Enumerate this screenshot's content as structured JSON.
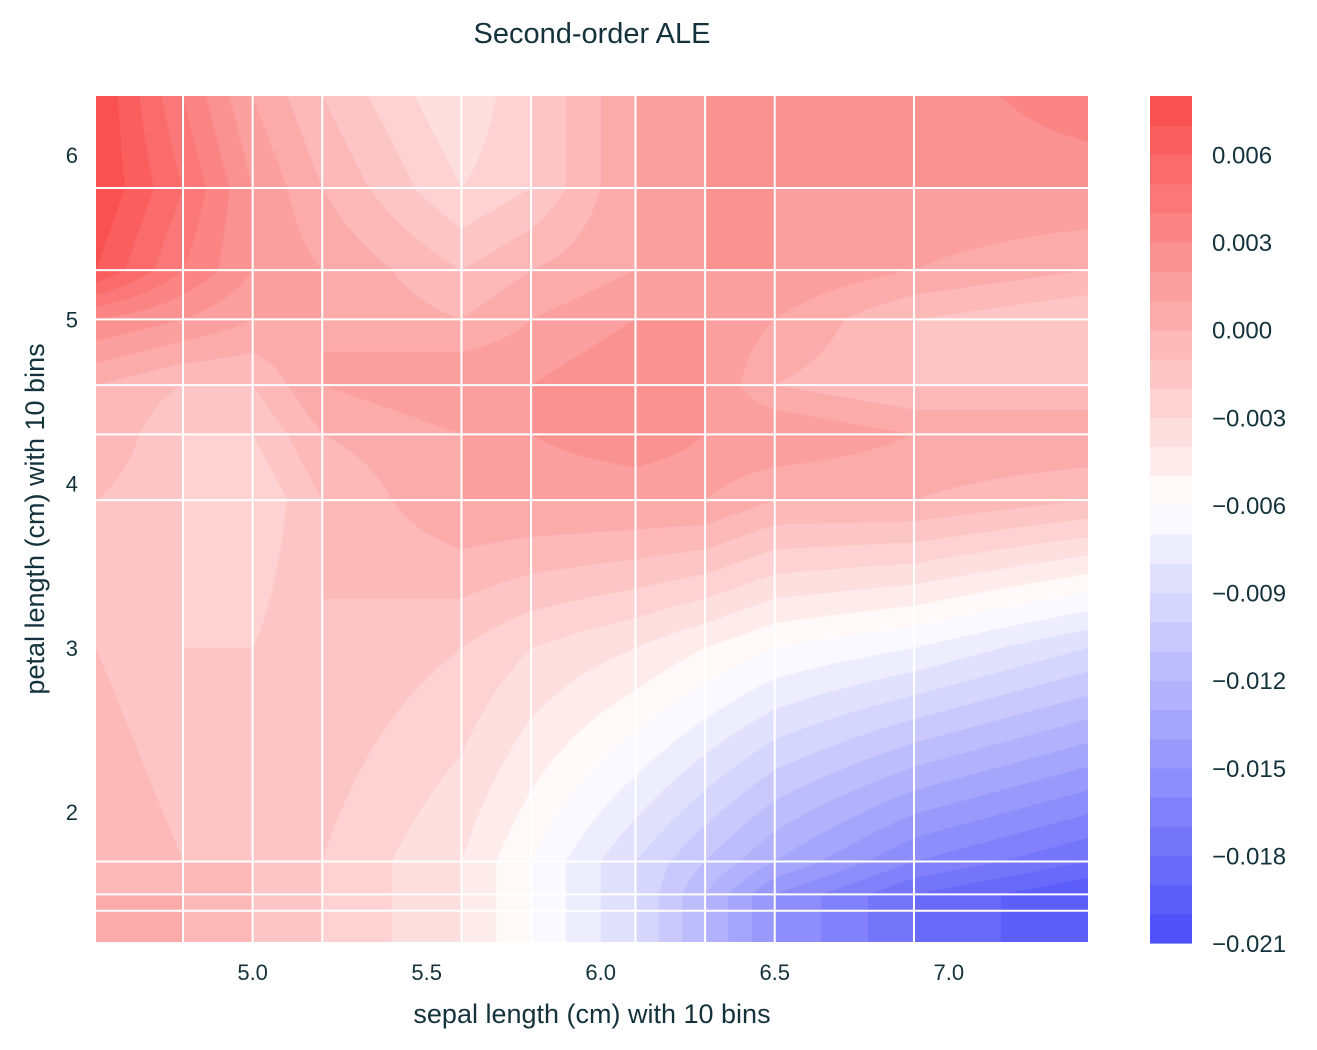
{
  "chart_data": {
    "type": "heatmap",
    "subtype": "filled-contour",
    "title": "Second-order ALE",
    "xlabel": "sepal length (cm) with 10 bins",
    "ylabel": "petal length (cm) with 10 bins",
    "xlim": [
      4.55,
      7.4
    ],
    "ylim": [
      1.21,
      6.36
    ],
    "xticks": [
      5.0,
      5.5,
      6.0,
      6.5,
      7.0
    ],
    "xtick_labels": [
      "5.0",
      "5.5",
      "6.0",
      "6.5",
      "7.0"
    ],
    "yticks": [
      2,
      3,
      4,
      5,
      6
    ],
    "ytick_labels": [
      "2",
      "3",
      "4",
      "5",
      "6"
    ],
    "x_bin_edges": [
      4.8,
      5.0,
      5.2,
      5.6,
      5.8,
      6.1,
      6.3,
      6.5,
      6.9
    ],
    "y_bin_edges": [
      1.4,
      1.5,
      1.7,
      3.9,
      4.3,
      4.6,
      5.0,
      5.3,
      5.8
    ],
    "grid_x": [
      4.55,
      4.8,
      5.0,
      5.2,
      5.6,
      5.8,
      6.1,
      6.3,
      6.5,
      6.9,
      7.4
    ],
    "grid_y": [
      1.21,
      1.4,
      1.5,
      1.7,
      3.0,
      3.9,
      4.3,
      4.6,
      5.0,
      5.3,
      5.8,
      6.36
    ],
    "z": [
      [
        0.001,
        0,
        -0.001,
        -0.002,
        -0.004,
        -0.006,
        -0.009,
        -0.012,
        -0.015,
        -0.018,
        -0.02
      ],
      [
        0,
        0,
        -0.001,
        -0.002,
        -0.004,
        -0.006,
        -0.009,
        -0.012,
        -0.015,
        -0.018,
        -0.02
      ],
      [
        0,
        0,
        -0.001,
        -0.002,
        -0.004,
        -0.006,
        -0.009,
        -0.012,
        -0.015,
        -0.018,
        -0.02
      ],
      [
        0,
        -0.001,
        -0.001,
        -0.002,
        -0.004,
        -0.006,
        -0.009,
        -0.011,
        -0.013,
        -0.016,
        -0.018
      ],
      [
        -0.001,
        -0.002,
        -0.002,
        -0.001,
        -0.002,
        -0.003,
        -0.004,
        -0.005,
        -0.006,
        -0.007,
        -0.009
      ],
      [
        -0.001,
        -0.002,
        -0.003,
        -0.001,
        0.001,
        0.001,
        0.001,
        0.001,
        0,
        0,
        -0.001
      ],
      [
        0,
        -0.002,
        -0.002,
        0,
        0.001,
        0.002,
        0.003,
        0.002,
        0.002,
        0.001,
        0.001
      ],
      [
        0,
        -0.001,
        -0.001,
        0.001,
        0.002,
        0.002,
        0.003,
        0.002,
        0,
        -0.001,
        -0.001
      ],
      [
        0.003,
        0.002,
        0.001,
        0.001,
        0,
        0.001,
        0.002,
        0.002,
        0.001,
        -0.001,
        -0.002
      ],
      [
        0.007,
        0.004,
        0.002,
        0.001,
        -0.001,
        0,
        0.001,
        0.002,
        0.002,
        0.001,
        0
      ],
      [
        0.008,
        0.005,
        0.002,
        0,
        -0.003,
        -0.002,
        0.001,
        0.002,
        0.002,
        0.002,
        0.002
      ],
      [
        0.008,
        0.004,
        0.001,
        -0.001,
        -0.004,
        -0.002,
        0.001,
        0.002,
        0.002,
        0.002,
        0.004
      ]
    ],
    "colorbar": {
      "range": [
        -0.021,
        0.008
      ],
      "level_step": 0.001,
      "ticks": [
        0.006,
        0.003,
        0.0,
        -0.003,
        -0.006,
        -0.009,
        -0.012,
        -0.015,
        -0.018,
        -0.021
      ],
      "tick_labels": [
        "0.006",
        "0.003",
        "0.000",
        "−0.003",
        "−0.006",
        "−0.009",
        "−0.012",
        "−0.015",
        "−0.018",
        "−0.021"
      ],
      "colormap": {
        "low": "#4b4bf9",
        "mid": "#ffffff",
        "high": "#f94b4b"
      }
    },
    "grid": true
  }
}
